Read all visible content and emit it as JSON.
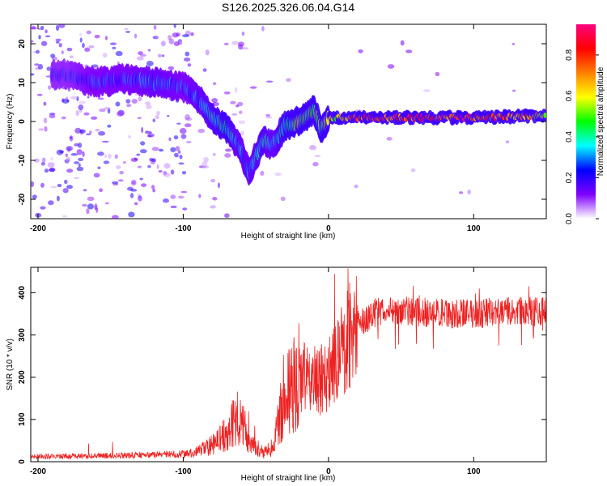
{
  "title": "S126.2025.326.06.04.G14",
  "chart_data": [
    {
      "type": "heatmap",
      "xlabel": "Height of straight line (km)",
      "ylabel": "Frequency (Hz)",
      "xlim": [
        -205,
        150
      ],
      "ylim": [
        -25,
        25
      ],
      "xticks": [
        {
          "v": -200,
          "label": "-200"
        },
        {
          "v": -100,
          "label": "-100"
        },
        {
          "v": 0,
          "label": "0"
        },
        {
          "v": 100,
          "label": "100"
        }
      ],
      "yticks": [
        {
          "v": 20,
          "label": "20"
        },
        {
          "v": 10,
          "label": "10"
        },
        {
          "v": 0,
          "label": "0"
        },
        {
          "v": -10,
          "label": "-10"
        },
        {
          "v": -20,
          "label": "-20"
        }
      ],
      "colorbar": {
        "label": "Normalized spectral amplitude",
        "range": [
          0,
          0.95
        ],
        "ticks": [
          {
            "v": 0.0,
            "label": "0.0"
          },
          {
            "v": 0.2,
            "label": "0.2"
          },
          {
            "v": 0.4,
            "label": "0.4"
          },
          {
            "v": 0.6,
            "label": "0.6"
          },
          {
            "v": 0.8,
            "label": "0.8"
          }
        ],
        "colors": [
          "#ffffff",
          "#8000ff",
          "#0000ff",
          "#00ffff",
          "#00ff00",
          "#ffff00",
          "#ff8000",
          "#ff0000",
          "#ff0080"
        ]
      },
      "ridge": [
        {
          "x": -180,
          "f": 12,
          "a": 0.25
        },
        {
          "x": -160,
          "f": 10,
          "a": 0.3
        },
        {
          "x": -140,
          "f": 11,
          "a": 0.3
        },
        {
          "x": -120,
          "f": 10,
          "a": 0.35
        },
        {
          "x": -100,
          "f": 9,
          "a": 0.3
        },
        {
          "x": -90,
          "f": 6,
          "a": 0.35
        },
        {
          "x": -80,
          "f": 1,
          "a": 0.4
        },
        {
          "x": -70,
          "f": -2,
          "a": 0.45
        },
        {
          "x": -62,
          "f": -6,
          "a": 0.35
        },
        {
          "x": -55,
          "f": -13,
          "a": 0.35
        },
        {
          "x": -45,
          "f": -5,
          "a": 0.4
        },
        {
          "x": -38,
          "f": -6,
          "a": 0.35
        },
        {
          "x": -30,
          "f": -1,
          "a": 0.45
        },
        {
          "x": -20,
          "f": 0,
          "a": 0.6
        },
        {
          "x": -10,
          "f": 3,
          "a": 0.55
        },
        {
          "x": -5,
          "f": -2,
          "a": 0.55
        },
        {
          "x": 0,
          "f": 1,
          "a": 0.6
        },
        {
          "x": 20,
          "f": 1,
          "a": 0.85
        },
        {
          "x": 60,
          "f": 1,
          "a": 0.9
        },
        {
          "x": 100,
          "f": 1,
          "a": 0.9
        },
        {
          "x": 150,
          "f": 1.5,
          "a": 0.7
        }
      ]
    },
    {
      "type": "line",
      "xlabel": "Height of straight line (km)",
      "ylabel": "SNR (10 * v/v)",
      "xlim": [
        -205,
        150
      ],
      "ylim": [
        0,
        460
      ],
      "xticks": [
        {
          "v": -200,
          "label": "-200"
        },
        {
          "v": -100,
          "label": "-100"
        },
        {
          "v": 0,
          "label": "0"
        },
        {
          "v": 100,
          "label": "100"
        }
      ],
      "yticks": [
        {
          "v": 0,
          "label": "0"
        },
        {
          "v": 100,
          "label": "100"
        },
        {
          "v": 200,
          "label": "200"
        },
        {
          "v": 300,
          "label": "300"
        },
        {
          "v": 400,
          "label": "400"
        }
      ],
      "series": [
        {
          "color": "#ee2222",
          "envelope": [
            {
              "x": -205,
              "y": 12
            },
            {
              "x": -150,
              "y": 14
            },
            {
              "x": -100,
              "y": 18
            },
            {
              "x": -90,
              "y": 22
            },
            {
              "x": -80,
              "y": 40
            },
            {
              "x": -70,
              "y": 70
            },
            {
              "x": -62,
              "y": 110
            },
            {
              "x": -55,
              "y": 55
            },
            {
              "x": -45,
              "y": 20
            },
            {
              "x": -38,
              "y": 35
            },
            {
              "x": -30,
              "y": 170
            },
            {
              "x": -20,
              "y": 200
            },
            {
              "x": -10,
              "y": 190
            },
            {
              "x": 0,
              "y": 200
            },
            {
              "x": 10,
              "y": 270
            },
            {
              "x": 20,
              "y": 320
            },
            {
              "x": 30,
              "y": 350
            },
            {
              "x": 45,
              "y": 360
            },
            {
              "x": 60,
              "y": 355
            },
            {
              "x": 80,
              "y": 350
            },
            {
              "x": 100,
              "y": 350
            },
            {
              "x": 120,
              "y": 355
            },
            {
              "x": 150,
              "y": 355
            }
          ]
        }
      ]
    }
  ]
}
